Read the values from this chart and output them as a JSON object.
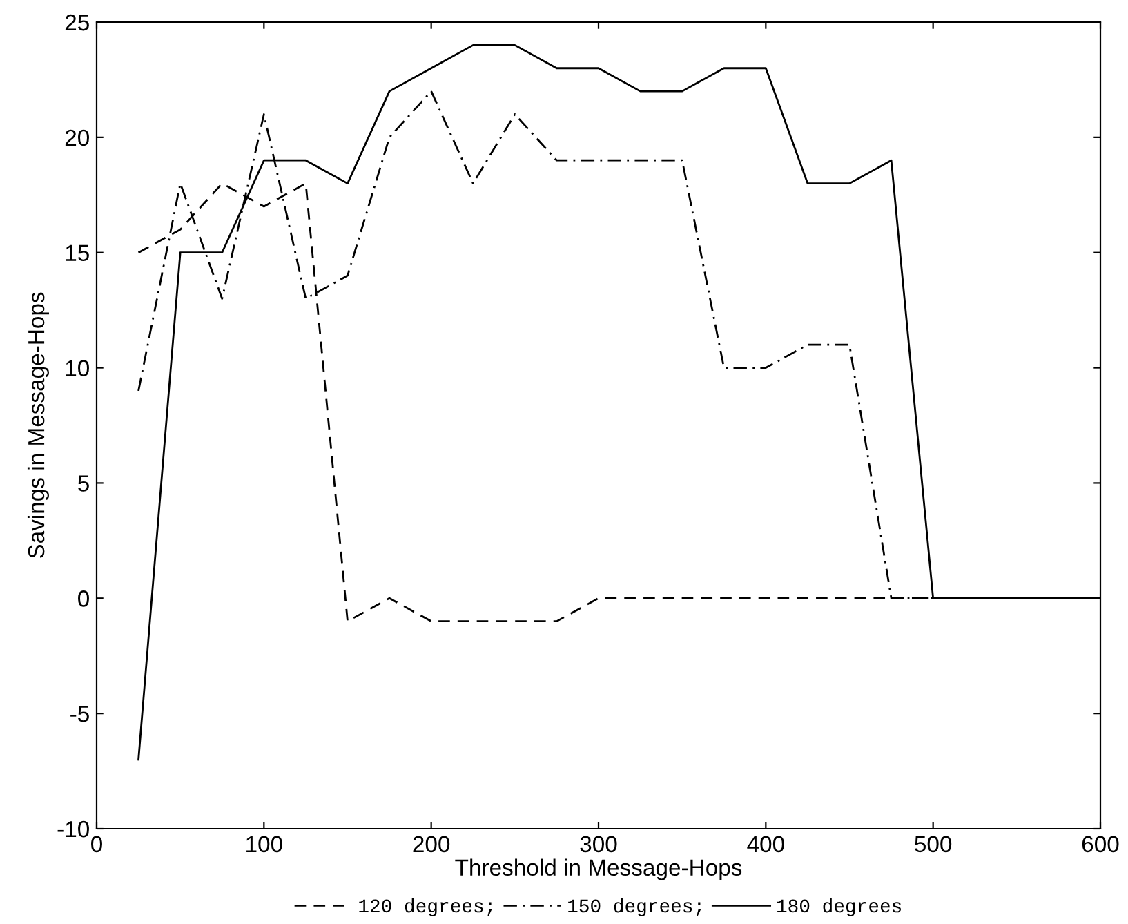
{
  "chart_data": {
    "type": "line",
    "xlabel": "Threshold in Message-Hops",
    "ylabel": "Savings in Message-Hops",
    "x": [
      25,
      50,
      75,
      100,
      125,
      150,
      175,
      200,
      225,
      250,
      275,
      300,
      325,
      350,
      375,
      400,
      425,
      450,
      475,
      500,
      525,
      550,
      575,
      600
    ],
    "series": [
      {
        "name": "120 degrees;",
        "color": "#000000",
        "line_style": "dashed",
        "values": [
          15,
          16,
          18,
          17,
          18,
          -1,
          0,
          -1,
          -1,
          -1,
          -1,
          0,
          0,
          0,
          0,
          0,
          0,
          0,
          0,
          0,
          0,
          0,
          0,
          0
        ]
      },
      {
        "name": "150 degrees;",
        "color": "#000000",
        "line_style": "dashdot",
        "values": [
          9,
          18,
          13,
          21,
          13,
          14,
          20,
          22,
          18,
          21,
          19,
          19,
          19,
          19,
          10,
          10,
          11,
          11,
          0,
          0,
          0,
          0,
          0,
          0
        ]
      },
      {
        "name": "180 degrees",
        "color": "#000000",
        "line_style": "solid",
        "values": [
          -7,
          15,
          15,
          19,
          19,
          18,
          22,
          23,
          24,
          24,
          23,
          23,
          22,
          22,
          23,
          23,
          18,
          18,
          19,
          0,
          0,
          0,
          0,
          0
        ]
      }
    ],
    "xlim": [
      0,
      600
    ],
    "xticks": [
      0,
      100,
      200,
      300,
      400,
      500,
      600
    ],
    "ylim": [
      -10,
      25
    ],
    "yticks": [
      -10,
      -5,
      0,
      5,
      10,
      15,
      20,
      25
    ],
    "grid": false,
    "legend": "bottom",
    "marker": "none"
  }
}
